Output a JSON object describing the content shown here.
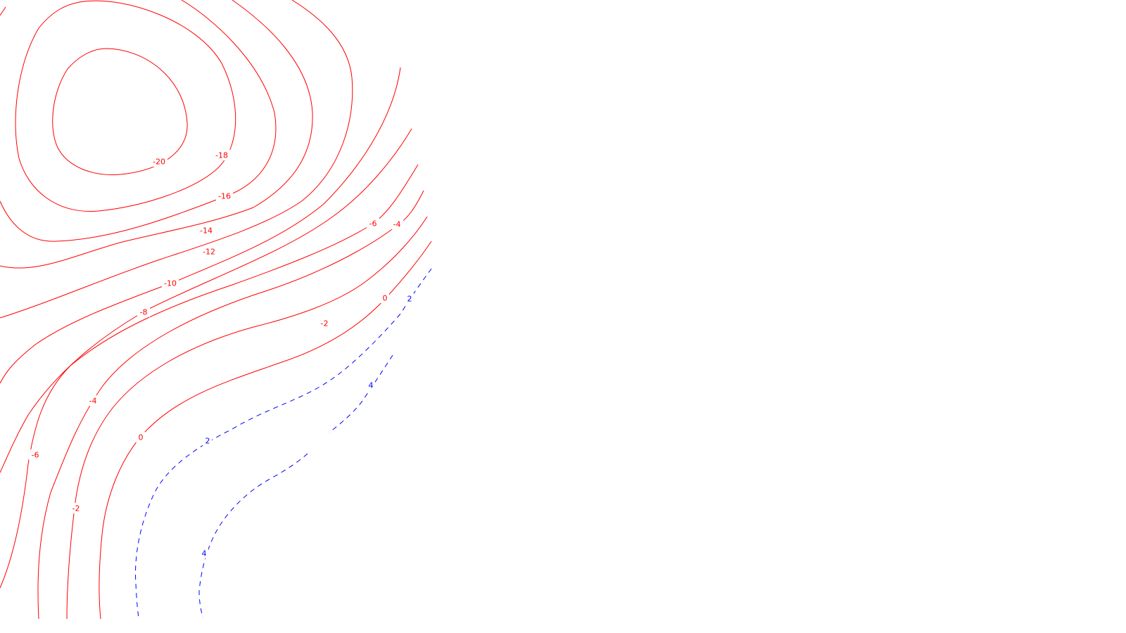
{
  "colors": {
    "negative_contour": "#ff0000",
    "positive_contour": "#0000ff",
    "background": "#ffffff"
  },
  "contours": [
    {
      "level": -20,
      "text": "-20",
      "style": "solid"
    },
    {
      "level": -18,
      "text": "-18",
      "style": "solid"
    },
    {
      "level": -16,
      "text": "-16",
      "style": "solid"
    },
    {
      "level": -14,
      "text": "-14",
      "style": "solid"
    },
    {
      "level": -12,
      "text": "-12",
      "style": "solid"
    },
    {
      "level": -10,
      "text": "-10",
      "style": "solid"
    },
    {
      "level": -8,
      "text": "-8",
      "style": "solid"
    },
    {
      "level": -6,
      "text": "-6",
      "style": "solid"
    },
    {
      "level": -4,
      "text": "-4",
      "style": "solid"
    },
    {
      "level": -2,
      "text": "-2",
      "style": "solid"
    },
    {
      "level": 0,
      "text": "0",
      "style": "solid"
    },
    {
      "level": 2,
      "text": "2",
      "style": "dashed"
    },
    {
      "level": 4,
      "text": "4",
      "style": "dashed"
    }
  ]
}
